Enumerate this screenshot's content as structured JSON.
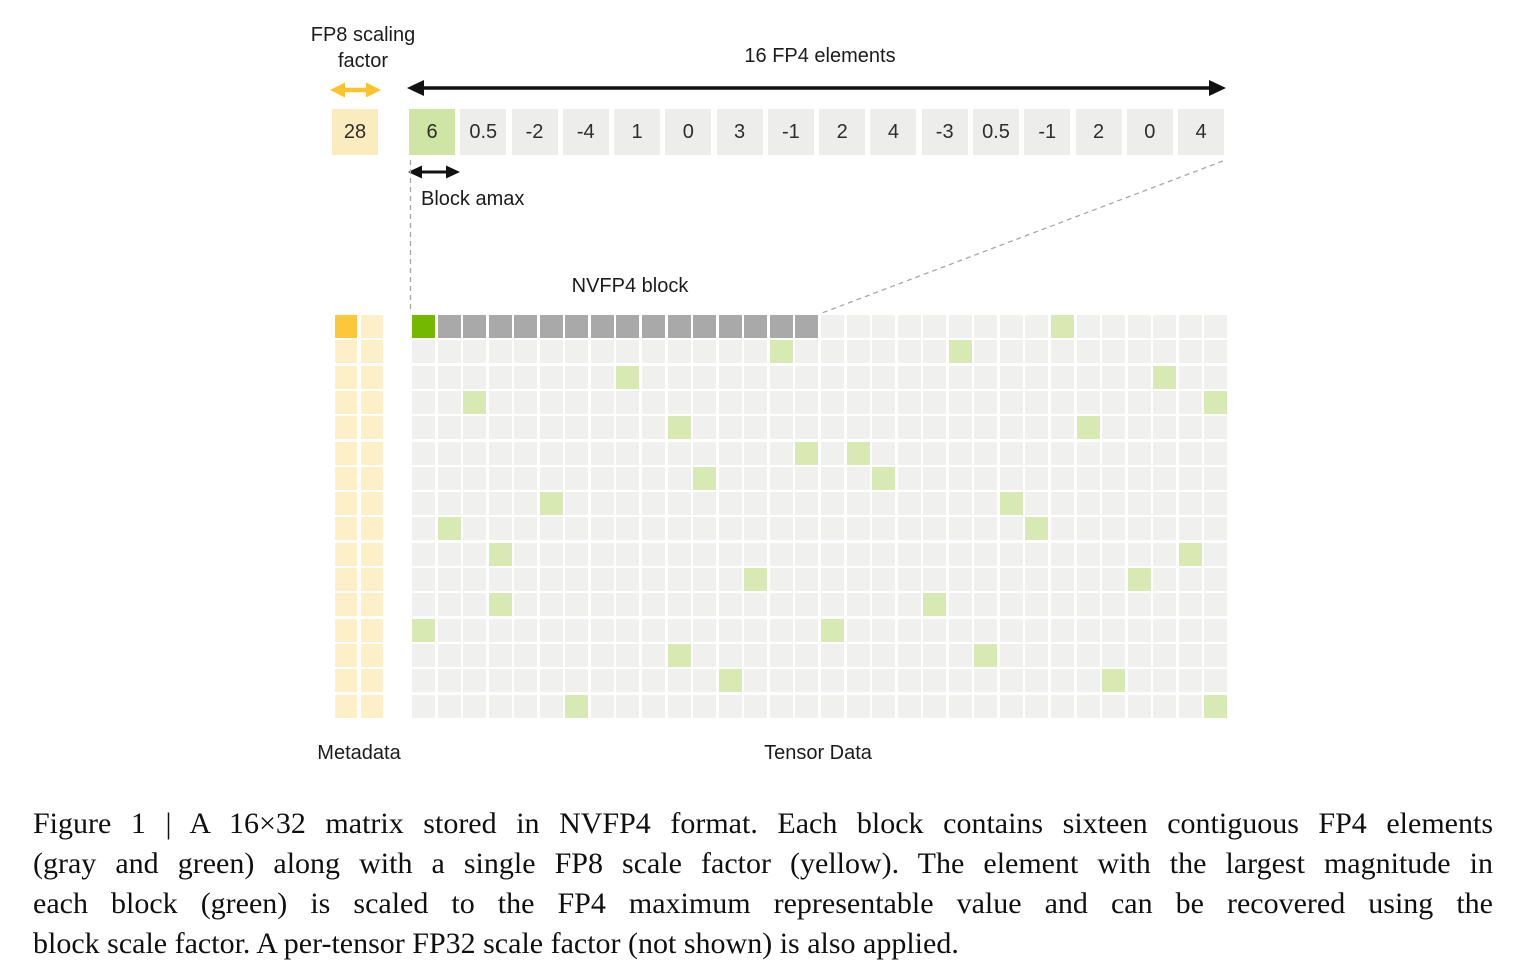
{
  "figure": {
    "fp8_label": "FP8 scaling factor",
    "elements_label": "16 FP4 elements",
    "block_amax_label": "Block amax",
    "nvfp4_block_label": "NVFP4 block",
    "metadata_label": "Metadata",
    "tensor_label": "Tensor Data",
    "scale_value": "28",
    "element_values": [
      "6",
      "0.5",
      "-2",
      "-4",
      "1",
      "0",
      "3",
      "-1",
      "2",
      "4",
      "-3",
      "0.5",
      "-1",
      "2",
      "0",
      "4"
    ]
  },
  "matrix": {
    "rows": 16,
    "cols": 32,
    "meta_cols": 2,
    "highlight_row": 0,
    "block_start_col": 0,
    "block_end_col": 15,
    "amax_cells": [
      [
        0,
        0
      ],
      [
        0,
        25
      ],
      [
        1,
        14
      ],
      [
        1,
        21
      ],
      [
        2,
        8
      ],
      [
        2,
        29
      ],
      [
        3,
        2
      ],
      [
        3,
        31
      ],
      [
        4,
        10
      ],
      [
        4,
        26
      ],
      [
        5,
        15
      ],
      [
        5,
        17
      ],
      [
        6,
        11
      ],
      [
        6,
        18
      ],
      [
        7,
        5
      ],
      [
        7,
        23
      ],
      [
        8,
        1
      ],
      [
        8,
        24
      ],
      [
        9,
        3
      ],
      [
        9,
        30
      ],
      [
        10,
        13
      ],
      [
        10,
        28
      ],
      [
        11,
        3
      ],
      [
        11,
        20
      ],
      [
        12,
        0
      ],
      [
        12,
        16
      ],
      [
        13,
        10
      ],
      [
        13,
        22
      ],
      [
        14,
        12
      ],
      [
        14,
        27
      ],
      [
        15,
        6
      ],
      [
        15,
        31
      ]
    ]
  },
  "colors": {
    "nvidia_green": "#74b900",
    "light_green_cell": "#cfe5a5",
    "amax_green": "#d9e9b4",
    "dark_gray": "#a9a9a9",
    "light_gray": "#f0f0ee",
    "element_gray": "#ededec",
    "light_yellow": "#fdf0c8",
    "scale_yellow": "#faecbe",
    "orange": "#fdc73a",
    "arrow_yellow": "#fcc32d",
    "arrow_black": "#111111",
    "dash_gray": "#a8a8a8"
  },
  "caption": {
    "lines": [
      "Figure 1 | A 16×32 matrix stored in NVFP4 format. Each block contains sixteen contiguous FP4 elements",
      "(gray and green) along with a single FP8 scale factor (yellow). The element with the largest magnitude in",
      "each block (green) is scaled to the FP4 maximum representable value and can be recovered using the",
      "block scale factor. A per-tensor FP32 scale factor (not shown) is also applied."
    ]
  }
}
